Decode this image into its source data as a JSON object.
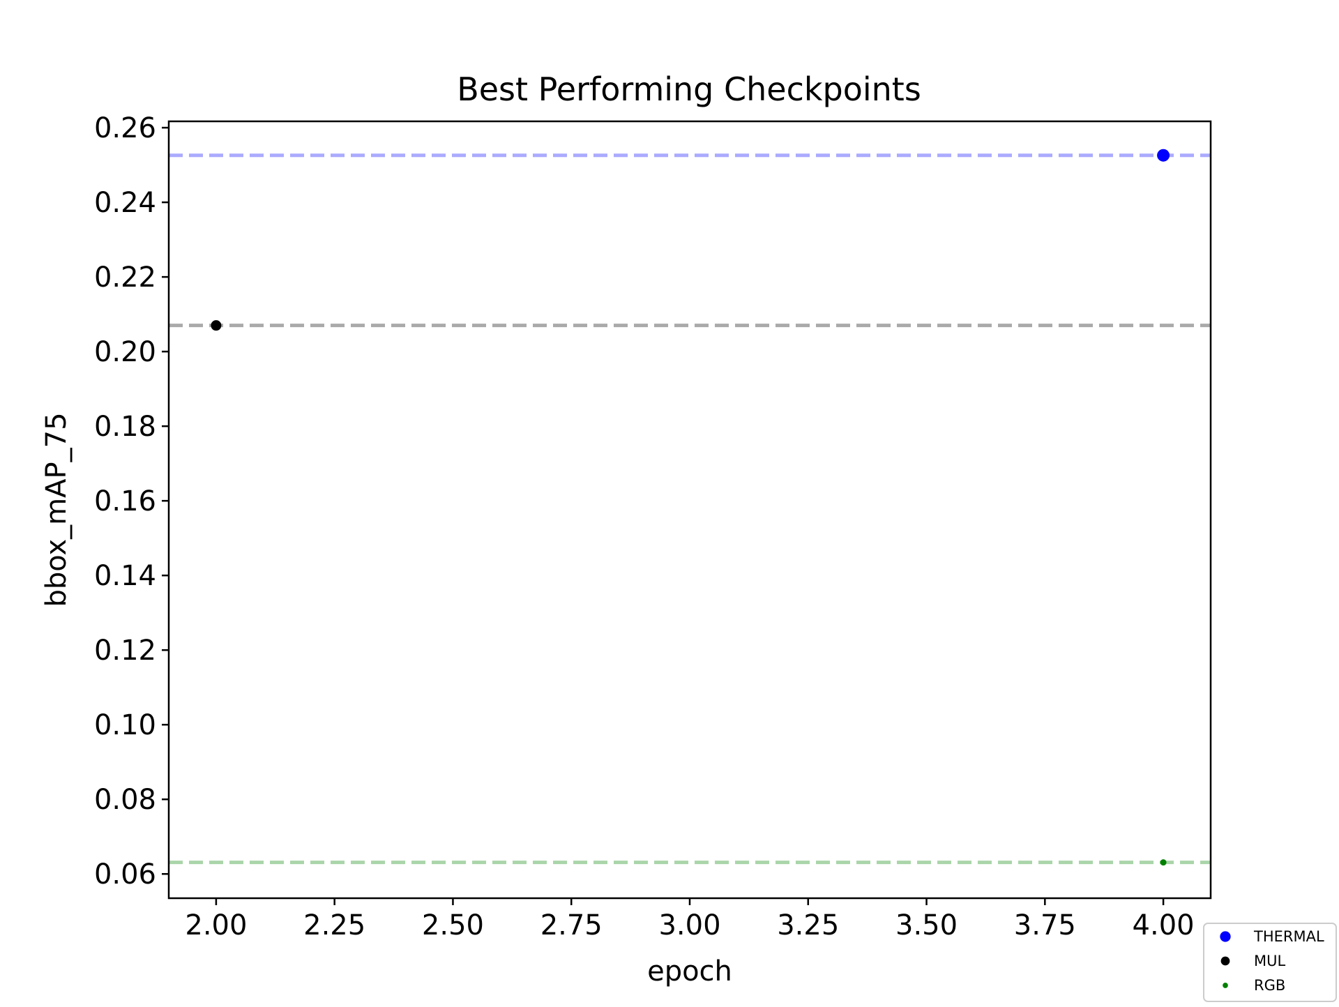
{
  "chart_data": {
    "type": "scatter",
    "title": "Best Performing Checkpoints",
    "xlabel": "epoch",
    "ylabel": "bbox_mAP_75",
    "xlim": [
      1.9,
      4.1
    ],
    "ylim": [
      0.0535,
      0.2617
    ],
    "x_ticks": [
      2.0,
      2.25,
      2.5,
      2.75,
      3.0,
      3.25,
      3.5,
      3.75,
      4.0
    ],
    "x_tick_labels": [
      "2.00",
      "2.25",
      "2.50",
      "2.75",
      "3.00",
      "3.25",
      "3.50",
      "3.75",
      "4.00"
    ],
    "y_ticks": [
      0.06,
      0.08,
      0.1,
      0.12,
      0.14,
      0.16,
      0.18,
      0.2,
      0.22,
      0.24,
      0.26
    ],
    "y_tick_labels": [
      "0.06",
      "0.08",
      "0.10",
      "0.12",
      "0.14",
      "0.16",
      "0.18",
      "0.20",
      "0.22",
      "0.24",
      "0.26"
    ],
    "grid": false,
    "legend_position": "bottom-right, outside plot",
    "series": [
      {
        "name": "THERMAL",
        "color": "#0000ff",
        "line_color": "#aaaaff",
        "marker_size": "large",
        "points": [
          {
            "x": 4.0,
            "y": 0.2526
          }
        ]
      },
      {
        "name": "MUL",
        "color": "#000000",
        "line_color": "#aaaaaa",
        "marker_size": "medium",
        "points": [
          {
            "x": 2.0,
            "y": 0.207
          }
        ]
      },
      {
        "name": "RGB",
        "color": "#008000",
        "line_color": "#aad5aa",
        "marker_size": "small",
        "points": [
          {
            "x": 4.0,
            "y": 0.0631
          }
        ]
      }
    ],
    "reference_lines": [
      {
        "series": "THERMAL",
        "y": 0.2526,
        "style": "dashed"
      },
      {
        "series": "MUL",
        "y": 0.207,
        "style": "dashed"
      },
      {
        "series": "RGB",
        "y": 0.0631,
        "style": "dashed"
      }
    ]
  }
}
